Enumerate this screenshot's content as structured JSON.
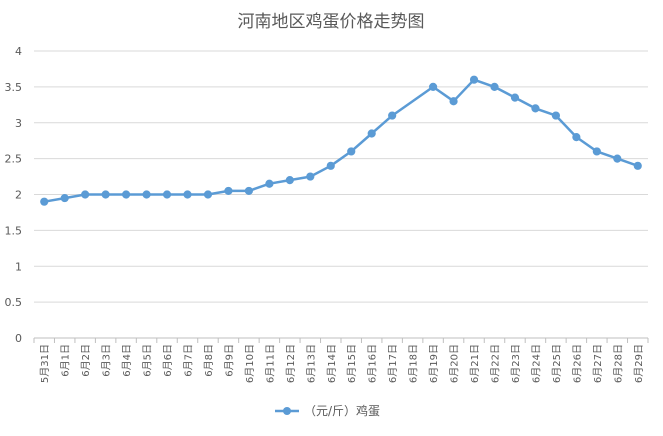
{
  "chart_data": {
    "type": "line",
    "title": "河南地区鸡蛋价格走势图",
    "xlabel": "",
    "ylabel": "",
    "categories": [
      "5月31日",
      "6月1日",
      "6月2日",
      "6月3日",
      "6月4日",
      "6月5日",
      "6月6日",
      "6月7日",
      "6月8日",
      "6月9日",
      "6月10日",
      "6月11日",
      "6月12日",
      "6月13日",
      "6月14日",
      "6月15日",
      "6月16日",
      "6月17日",
      "6月18日",
      "6月19日",
      "6月20日",
      "6月21日",
      "6月22日",
      "6月23日",
      "6月24日",
      "6月25日",
      "6月26日",
      "6月27日",
      "6月28日",
      "6月29日"
    ],
    "y_ticks": [
      "0",
      "0.5",
      "1",
      "1.5",
      "2",
      "2.5",
      "3",
      "3.5",
      "4"
    ],
    "ylim": [
      0,
      4
    ],
    "grid": true,
    "legend_position": "bottom",
    "series": [
      {
        "name": "（元/斤）鸡蛋",
        "color": "#5B9BD5",
        "values": [
          1.9,
          1.95,
          2.0,
          2.0,
          2.0,
          2.0,
          2.0,
          2.0,
          2.0,
          2.05,
          2.05,
          2.15,
          2.2,
          2.25,
          2.4,
          2.6,
          2.85,
          3.1,
          null,
          3.5,
          3.3,
          3.6,
          3.5,
          3.35,
          3.2,
          3.1,
          2.8,
          2.6,
          2.5,
          2.4
        ]
      }
    ]
  }
}
